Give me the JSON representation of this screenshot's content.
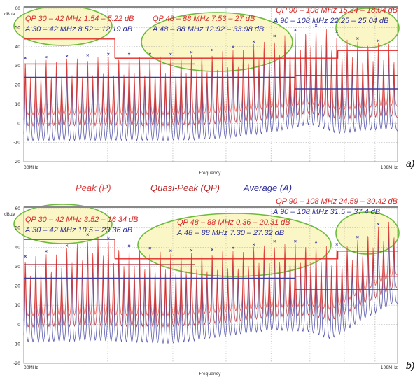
{
  "legend": {
    "peak": "Peak (P)",
    "qp": "Quasi-Peak (QP)",
    "avg": "Average (A)"
  },
  "colors": {
    "peak": "#e8453c",
    "qp": "#a8283a",
    "avg": "#3d3d9e",
    "ellipse_fill": "#fbf6c6",
    "ellipse_stroke": "#6cbb3c",
    "annot_red": "#d42a2a",
    "annot_blue": "#2c2c9a"
  },
  "chart_data": [
    {
      "panel": "a)",
      "type": "line",
      "xlabel": "Frequency",
      "ylabel": "dBµV",
      "x_scale": "log",
      "xlim": [
        30,
        108
      ],
      "ylim": [
        -20,
        60
      ],
      "x_tick_labels": [
        "30MHz",
        "108MHz"
      ],
      "y_ticks": [
        -20,
        -10,
        0,
        10,
        20,
        30,
        40,
        50,
        60
      ],
      "grid": true,
      "annotations": [
        {
          "qp": "QP 30 – 42 MHz 1.54 – 5.22 dB",
          "avg": "A 30 – 42 MHz 8.52 – 12.19 dB"
        },
        {
          "qp": "QP 48 – 88 MHz 7.53 – 27 dB",
          "avg": "A 48 – 88 MHz 12.92 – 33.98 dB"
        },
        {
          "qp": "QP 90 – 108 MHz 15.34 – 18.04 dB",
          "avg": "A 90 – 108 MHz 22.25 – 25.04 dB"
        }
      ],
      "limits": {
        "peak": [
          [
            30,
            41,
            44
          ],
          [
            41,
            88,
            34
          ],
          [
            88,
            108,
            38
          ]
        ],
        "qp": [
          [
            30,
            54,
            31
          ],
          [
            76,
            108,
            25
          ]
        ],
        "avg": [
          [
            30,
            76,
            24
          ],
          [
            76,
            108,
            18
          ]
        ]
      },
      "envelope": {
        "freq_mhz": [
          30,
          40,
          50,
          60,
          70,
          80,
          85,
          90,
          100,
          108
        ],
        "peak_dbuv": [
          33,
          35,
          35,
          38,
          44,
          50,
          50,
          44,
          42,
          42
        ],
        "qp_dbuv": [
          31,
          33,
          33,
          35,
          41,
          47,
          47,
          41,
          39,
          39
        ],
        "avg_dbuv": [
          28,
          30,
          30,
          33,
          38,
          44,
          44,
          38,
          36,
          36
        ]
      },
      "floor": {
        "freq_mhz": [
          30,
          40,
          50,
          60,
          70,
          80,
          88,
          95,
          108
        ],
        "peak_dbuv": [
          3,
          3,
          3,
          4,
          6,
          8,
          5,
          6,
          8
        ],
        "qp_dbuv": [
          -3,
          -3,
          -3,
          -2,
          0,
          3,
          0,
          1,
          2
        ],
        "avg_dbuv": [
          -11,
          -11,
          -11,
          -10,
          -7,
          -3,
          -8,
          -6,
          -5
        ]
      }
    },
    {
      "panel": "b)",
      "type": "line",
      "xlabel": "Frequency",
      "ylabel": "dBµV",
      "x_scale": "log",
      "xlim": [
        30,
        108
      ],
      "ylim": [
        -20,
        60
      ],
      "x_tick_labels": [
        "30MHz",
        "108MHz"
      ],
      "y_ticks": [
        -20,
        -10,
        0,
        10,
        20,
        30,
        40,
        50,
        60
      ],
      "grid": true,
      "annotations": [
        {
          "qp": "QP 30 – 42 MHz 3.52 – 16 34 dB",
          "avg": "A 30 – 42 MHz 10.5 – 23.36 dB"
        },
        {
          "qp": "QP 48 – 88 MHz 0.36 – 20.31 dB",
          "avg": "A 48 – 88 MHz 7.30 – 27.32 dB"
        },
        {
          "qp": "QP 90 – 108 MHz 24.59 – 30.42 dB",
          "avg": "A 90 – 108 MHz 31.5 – 37.4 dB"
        }
      ],
      "limits": {
        "peak": [
          [
            30,
            41,
            44
          ],
          [
            41,
            88,
            34
          ],
          [
            88,
            108,
            38
          ]
        ],
        "qp": [
          [
            30,
            54,
            31
          ],
          [
            76,
            108,
            25
          ]
        ],
        "avg": [
          [
            30,
            76,
            24
          ],
          [
            76,
            108,
            18
          ]
        ]
      },
      "envelope": {
        "freq_mhz": [
          30,
          35,
          38,
          42,
          50,
          60,
          70,
          80,
          90,
          100,
          108
        ],
        "peak_dbuv": [
          34,
          40,
          47,
          40,
          37,
          38,
          42,
          42,
          40,
          50,
          56
        ],
        "qp_dbuv": [
          32,
          38,
          45,
          38,
          35,
          36,
          40,
          40,
          38,
          48,
          54
        ],
        "avg_dbuv": [
          29,
          35,
          42,
          35,
          32,
          33,
          37,
          37,
          35,
          45,
          51
        ]
      },
      "floor": {
        "freq_mhz": [
          30,
          40,
          50,
          60,
          70,
          80,
          86,
          95,
          108
        ],
        "peak_dbuv": [
          3,
          3,
          3,
          5,
          7,
          8,
          6,
          15,
          25
        ],
        "qp_dbuv": [
          -3,
          -3,
          -3,
          -1,
          2,
          3,
          0,
          8,
          18
        ],
        "avg_dbuv": [
          -11,
          -11,
          -12,
          -8,
          -5,
          -6,
          -10,
          0,
          10
        ]
      }
    }
  ]
}
